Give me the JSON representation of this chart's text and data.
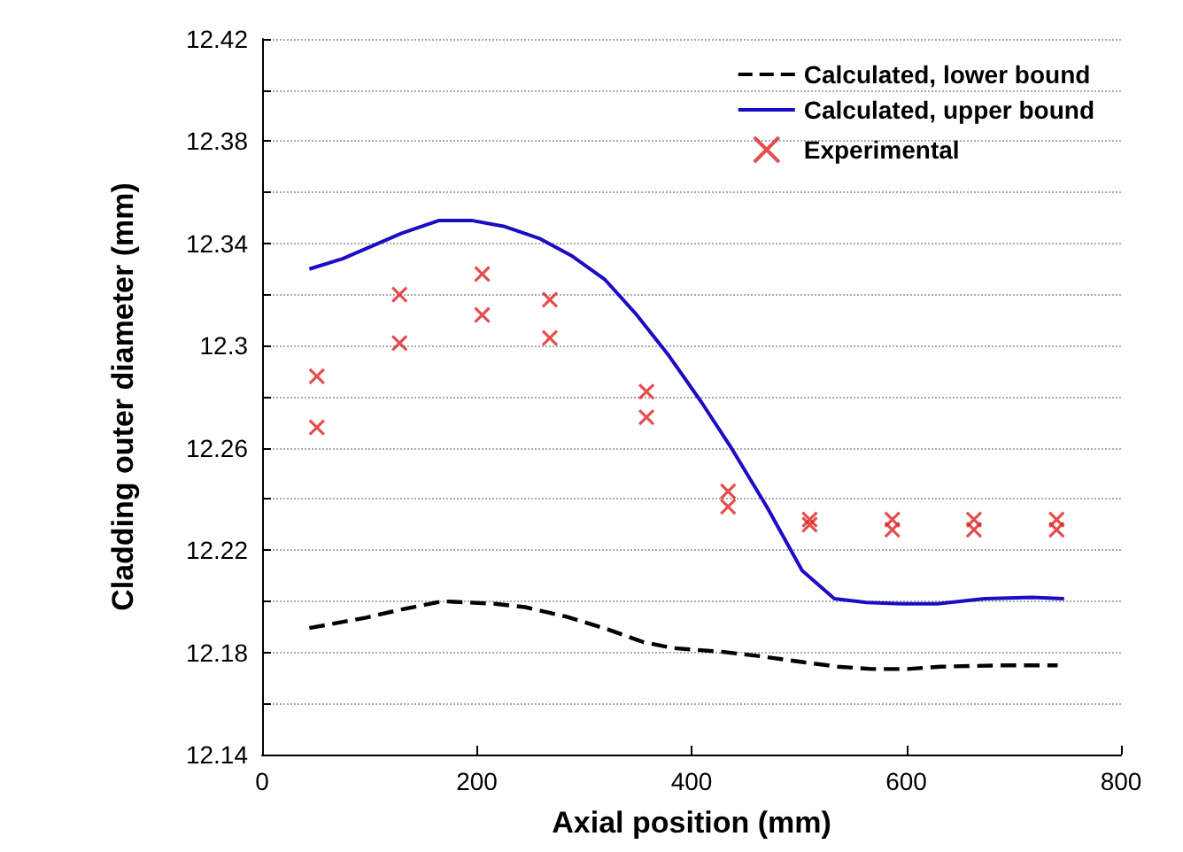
{
  "chart_data": {
    "type": "line",
    "xlabel": "Axial position (mm)",
    "ylabel": "Cladding outer diameter (mm)",
    "xlim": [
      0,
      800
    ],
    "xticks": [
      0,
      200,
      400,
      600,
      800
    ],
    "ylim": [
      12.14,
      12.42
    ],
    "yticks": [
      12.14,
      {
        "value": 12.16,
        "label": null
      },
      12.18,
      {
        "value": 12.2,
        "label": null
      },
      12.22,
      {
        "value": 12.24,
        "label": null
      },
      12.26,
      {
        "value": 12.28,
        "label": null
      },
      12.3,
      {
        "value": 12.32,
        "label": null
      },
      12.34,
      {
        "value": 12.36,
        "label": null
      },
      12.38,
      {
        "value": 12.4,
        "label": null
      },
      12.42
    ],
    "grid": "y",
    "legend": "top right",
    "series": [
      {
        "name": "Calculated, lower bound",
        "line_style": "dashed",
        "marker": "none",
        "color": "#000000",
        "x": [
          44,
          97,
          130,
          168,
          217,
          245,
          283,
          322,
          355,
          382,
          426,
          464,
          503,
          536,
          568,
          601,
          632,
          687,
          741
        ],
        "values": [
          12.1895,
          12.1936,
          12.1968,
          12.2,
          12.199,
          12.1977,
          12.194,
          12.189,
          12.184,
          12.1817,
          12.1803,
          12.1785,
          12.1762,
          12.1744,
          12.1735,
          12.1735,
          12.1744,
          12.1749,
          12.1749
        ]
      },
      {
        "name": "Calculated, upper bound",
        "line_style": "solid",
        "marker": "none",
        "color": "#1c0cc4",
        "x": [
          44,
          75,
          130,
          165,
          195,
          226,
          258,
          289,
          319,
          349,
          379,
          409,
          437,
          470,
          503,
          533,
          563,
          597,
          629,
          673,
          717,
          747
        ],
        "values": [
          12.33,
          12.334,
          12.344,
          12.349,
          12.349,
          12.3466,
          12.342,
          12.335,
          12.326,
          12.312,
          12.296,
          12.278,
          12.26,
          12.237,
          12.212,
          12.201,
          12.1995,
          12.199,
          12.199,
          12.201,
          12.2015,
          12.201
        ]
      },
      {
        "name": "Experimental",
        "type": "scatter",
        "marker": "cross",
        "color": "#dd2222",
        "x": [
          51,
          51,
          128,
          128,
          205,
          205,
          268,
          268,
          358,
          358,
          434,
          434,
          510,
          510,
          587,
          587,
          663,
          663,
          740,
          740
        ],
        "values": [
          12.288,
          12.268,
          12.32,
          12.301,
          12.328,
          12.312,
          12.318,
          12.303,
          12.282,
          12.272,
          12.243,
          12.237,
          12.232,
          12.23,
          12.232,
          12.228,
          12.232,
          12.228,
          12.232,
          12.228
        ]
      }
    ]
  }
}
